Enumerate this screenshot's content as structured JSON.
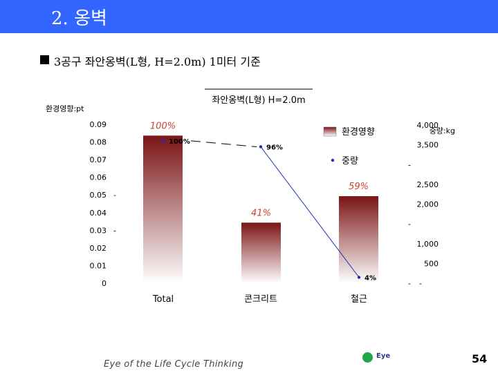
{
  "header": {
    "title": "2. 옹벽",
    "bar_color": "#3366ff"
  },
  "bullet": {
    "text": "3공구 좌안옹벽(L형, H=2.0m) 1미터 기준"
  },
  "chart_data": {
    "type": "bar",
    "title": "좌안옹벽(L형) H=2.0m",
    "left_unit": "환경영향:pt",
    "right_unit": "중량:kg",
    "categories": [
      "Total",
      "콘크리트",
      "철근"
    ],
    "left_axis": {
      "ylim": [
        0,
        0.09
      ],
      "ticks": [
        "0",
        "0.01",
        "0.02",
        "0.03",
        "0.04",
        "0.05",
        "0.06",
        "0.07",
        "0.08",
        "0.09"
      ]
    },
    "right_axis": {
      "ylim": [
        0,
        4000
      ],
      "ticks": [
        "",
        "500",
        "1,000",
        "",
        "2,000",
        "2,500",
        "",
        "3,500",
        "4,000"
      ]
    },
    "series": [
      {
        "name": "환경영향",
        "kind": "bar",
        "values": [
          0.0836,
          0.0343,
          0.0493
        ],
        "labels": [
          "100%",
          "41%",
          "59%"
        ],
        "gradient_top": "#7a1416",
        "gradient_bottom": "#ffffff",
        "label_color": "#d04030"
      },
      {
        "name": "중량",
        "kind": "line",
        "values": [
          3600,
          3450,
          150
        ],
        "labels": [
          "100%",
          "96%",
          "4%"
        ],
        "color": "#1f2fbf"
      }
    ],
    "grid": false,
    "legend_position": "top-right"
  },
  "footer": {
    "tagline": "Eye of the Life Cycle Thinking",
    "logo_text": "Eye",
    "page_number": "54"
  }
}
